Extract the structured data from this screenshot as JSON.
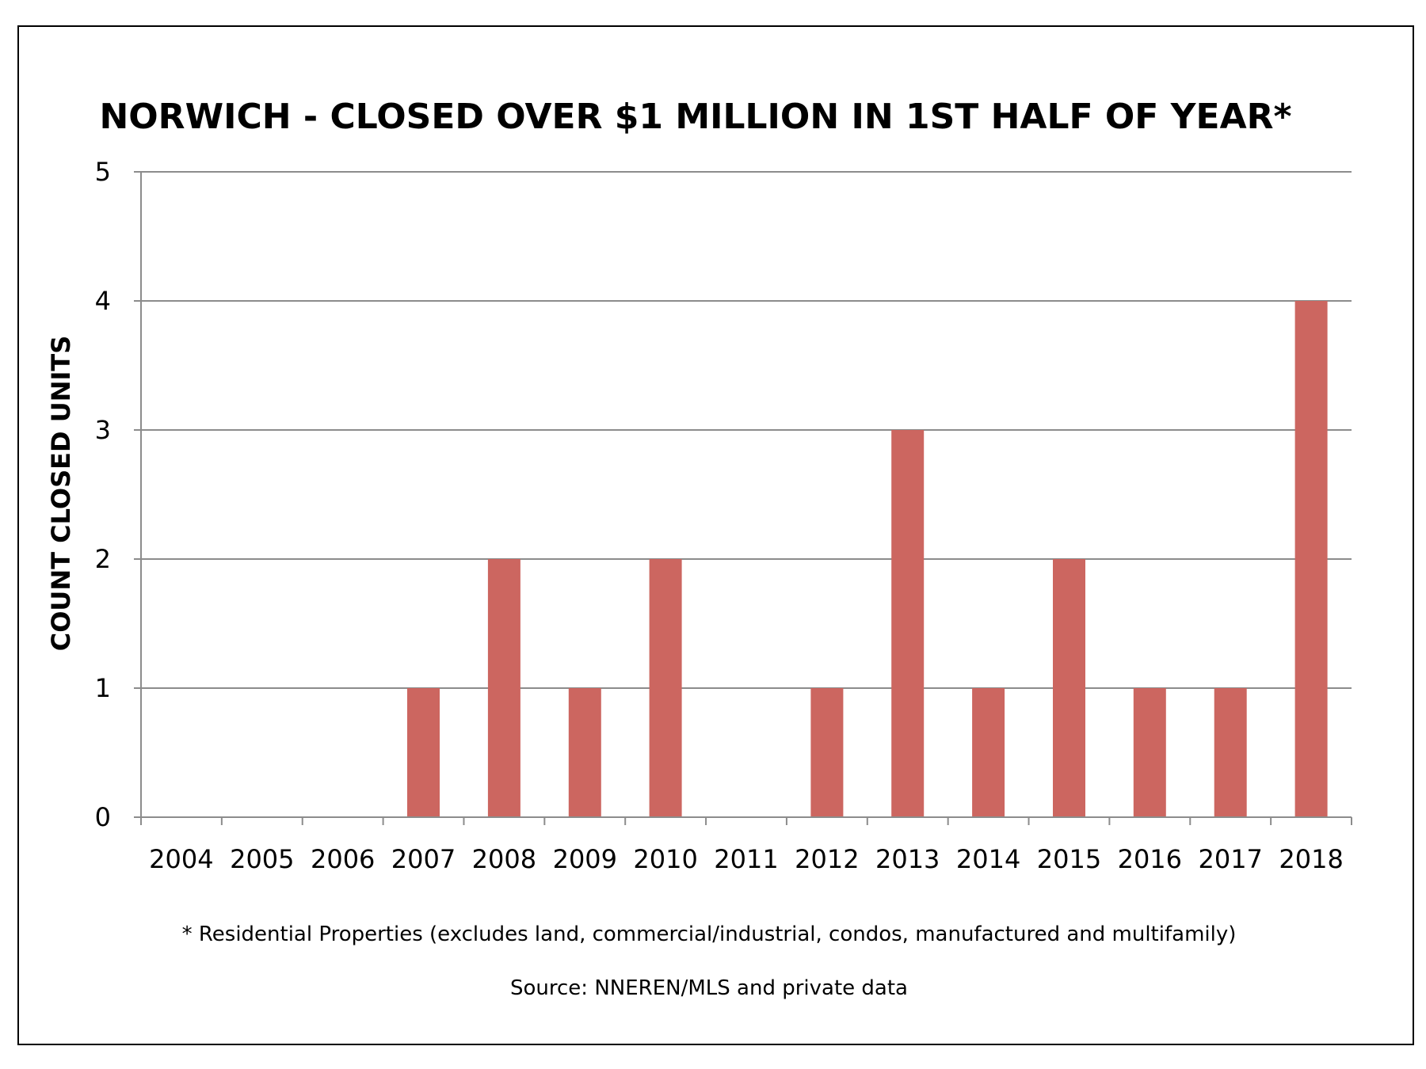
{
  "chart_data": {
    "type": "bar",
    "title": "NORWICH - CLOSED OVER $1 MILLION IN 1ST HALF OF YEAR*",
    "xlabel": "",
    "ylabel": "COUNT CLOSED UNITS",
    "categories": [
      "2004",
      "2005",
      "2006",
      "2007",
      "2008",
      "2009",
      "2010",
      "2011",
      "2012",
      "2013",
      "2014",
      "2015",
      "2016",
      "2017",
      "2018"
    ],
    "values": [
      0,
      0,
      0,
      1,
      2,
      1,
      2,
      0,
      1,
      3,
      1,
      2,
      1,
      1,
      4
    ],
    "ylim": [
      0,
      5
    ],
    "yticks": [
      "0",
      "1",
      "2",
      "3",
      "4",
      "5"
    ],
    "grid": true,
    "legend": "none",
    "bar_color": "#cc6660",
    "footnote": "* Residential Properties (excludes land, commercial/industrial, condos, manufactured and multifamily)",
    "source": "Source: NNEREN/MLS and private data"
  }
}
